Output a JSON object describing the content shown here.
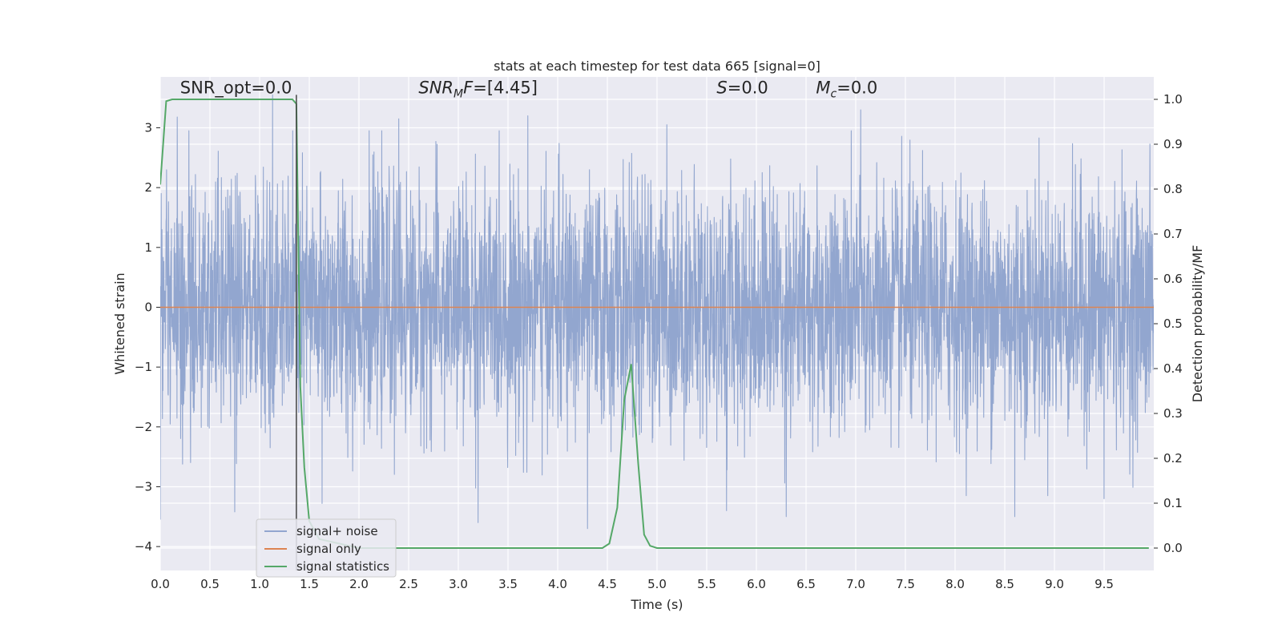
{
  "chart_data": {
    "type": "line",
    "title": "stats at each timestep for test data 665 [signal=0]",
    "xlabel": "Time (s)",
    "ylabel": "Whitened strain",
    "y2label": "Detection probability/MF",
    "xlim": [
      0.0,
      10.0
    ],
    "ylim": [
      -4.4,
      3.85
    ],
    "y2lim": [
      -0.05,
      1.05
    ],
    "xticks": [
      0.0,
      0.5,
      1.0,
      1.5,
      2.0,
      2.5,
      3.0,
      3.5,
      4.0,
      4.5,
      5.0,
      5.5,
      6.0,
      6.5,
      7.0,
      7.5,
      8.0,
      8.5,
      9.0,
      9.5
    ],
    "xtick_labels": [
      "0.0",
      "0.5",
      "1.0",
      "1.5",
      "2.0",
      "2.5",
      "3.0",
      "3.5",
      "4.0",
      "4.5",
      "5.0",
      "5.5",
      "6.0",
      "6.5",
      "7.0",
      "7.5",
      "8.0",
      "8.5",
      "9.0",
      "9.5"
    ],
    "yticks": [
      -4,
      -3,
      -2,
      -1,
      0,
      1,
      2,
      3
    ],
    "ytick_labels": [
      "−4",
      "−3",
      "−2",
      "−1",
      "0",
      "1",
      "2",
      "3"
    ],
    "y2ticks": [
      0.0,
      0.1,
      0.2,
      0.3,
      0.4,
      0.5,
      0.6,
      0.7,
      0.8,
      0.9,
      1.0
    ],
    "y2tick_labels": [
      "0.0",
      "0.1",
      "0.2",
      "0.3",
      "0.4",
      "0.5",
      "0.6",
      "0.7",
      "0.8",
      "0.9",
      "1.0"
    ],
    "grid": true,
    "legend_placement": "lower-left",
    "annotations": [
      {
        "x": 0.2,
        "y2": 1.013,
        "parts": [
          {
            "t": "SNR_opt=0.0",
            "i": false
          }
        ]
      },
      {
        "x": 2.6,
        "y2": 1.013,
        "parts": [
          {
            "t": "SNR",
            "i": true
          },
          {
            "t": "M",
            "i": true,
            "sub": true
          },
          {
            "t": "F",
            "i": true
          },
          {
            "t": "=[4.45]",
            "i": false
          }
        ]
      },
      {
        "x": 5.6,
        "y2": 1.013,
        "parts": [
          {
            "t": "S",
            "i": true
          },
          {
            "t": "=0.0",
            "i": false
          }
        ]
      },
      {
        "x": 6.6,
        "y2": 1.013,
        "parts": [
          {
            "t": "M",
            "i": true
          },
          {
            "t": "c",
            "i": true,
            "sub": true
          },
          {
            "t": "=0.0",
            "i": false
          }
        ]
      }
    ],
    "vline": {
      "x": 1.37,
      "ymin": -4.4,
      "ymax": 3.55,
      "color": "#444444"
    },
    "series": [
      {
        "name": "signal+ noise",
        "color": "#92a6cf",
        "kind": "noise",
        "x_range": [
          0.0,
          10.0
        ],
        "n_samples": 4096,
        "std": 1.0,
        "peaks": [
          {
            "x": 0.0,
            "y": -3.55
          },
          {
            "x": 0.17,
            "y": 3.18
          },
          {
            "x": 0.75,
            "y": -3.42
          },
          {
            "x": 1.13,
            "y": 3.55
          },
          {
            "x": 1.63,
            "y": -3.28
          },
          {
            "x": 2.4,
            "y": 3.15
          },
          {
            "x": 3.2,
            "y": -3.6
          },
          {
            "x": 3.7,
            "y": 3.2
          },
          {
            "x": 4.3,
            "y": -3.7
          },
          {
            "x": 5.1,
            "y": 3.05
          },
          {
            "x": 5.7,
            "y": -3.4
          },
          {
            "x": 6.3,
            "y": -3.5
          },
          {
            "x": 7.05,
            "y": 3.3
          },
          {
            "x": 8.6,
            "y": -3.5
          },
          {
            "x": 9.5,
            "y": -3.2
          }
        ]
      },
      {
        "name": "signal only",
        "color": "#dd8452",
        "kind": "line",
        "x": [
          0.0,
          10.0
        ],
        "y": [
          0.0,
          0.0
        ]
      },
      {
        "name": "signal statistics",
        "color": "#55a868",
        "kind": "line",
        "axis": "right",
        "x": [
          0.0,
          0.06,
          0.12,
          0.2,
          0.4,
          1.0,
          1.3,
          1.33,
          1.37,
          1.41,
          1.45,
          1.5,
          1.6,
          1.8,
          2.0,
          3.0,
          4.0,
          4.45,
          4.52,
          4.6,
          4.67,
          4.74,
          4.81,
          4.87,
          4.93,
          5.0,
          6.0,
          7.0,
          8.0,
          9.0,
          9.95
        ],
        "y": [
          0.81,
          0.996,
          1.0,
          1.0,
          1.0,
          1.0,
          1.0,
          1.0,
          0.99,
          0.36,
          0.18,
          0.06,
          0.02,
          0.01,
          0.0,
          0.0,
          0.0,
          0.0,
          0.01,
          0.09,
          0.33,
          0.41,
          0.19,
          0.03,
          0.005,
          0.0,
          0.0,
          0.0,
          0.0,
          0.0,
          0.0
        ]
      }
    ]
  }
}
